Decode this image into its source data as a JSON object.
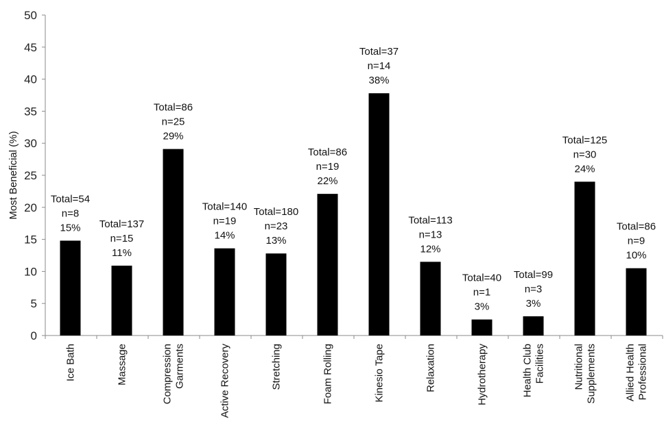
{
  "chart_data": {
    "type": "bar",
    "ylabel": "Most Beneficial (%)",
    "xlabel": "",
    "ylim": [
      0,
      50
    ],
    "yticks": [
      0,
      5,
      10,
      15,
      20,
      25,
      30,
      35,
      40,
      45,
      50
    ],
    "grid": false,
    "bar_color": "#000000",
    "categories": [
      [
        "Ice Bath"
      ],
      [
        "Massage"
      ],
      [
        "Compression",
        "Garments"
      ],
      [
        "Active Recovery"
      ],
      [
        "Stretching"
      ],
      [
        "Foam Rolling"
      ],
      [
        "Kinesio Tape"
      ],
      [
        "Relaxation"
      ],
      [
        "Hydrotherapy"
      ],
      [
        "Health Club",
        "Facilities"
      ],
      [
        "Nutritional",
        "Supplements"
      ],
      [
        "Allied Health",
        "Professional"
      ]
    ],
    "values": [
      14.8,
      10.9,
      29.1,
      13.6,
      12.8,
      22.1,
      37.8,
      11.5,
      2.5,
      3.0,
      24.0,
      10.5
    ],
    "annotations": [
      [
        "Total=54",
        "n=8",
        "15%"
      ],
      [
        "Total=137",
        "n=15",
        "11%"
      ],
      [
        "Total=86",
        "n=25",
        "29%"
      ],
      [
        "Total=140",
        "n=19",
        "14%"
      ],
      [
        "Total=180",
        "n=23",
        "13%"
      ],
      [
        "Total=86",
        "n=19",
        "22%"
      ],
      [
        "Total=37",
        "n=14",
        "38%"
      ],
      [
        "Total=113",
        "n=13",
        "12%"
      ],
      [
        "Total=40",
        "n=1",
        "3%"
      ],
      [
        "Total=99",
        "n=3",
        "3%"
      ],
      [
        "Total=125",
        "n=30",
        "24%"
      ],
      [
        "Total=86",
        "n=9",
        "10%"
      ]
    ]
  }
}
